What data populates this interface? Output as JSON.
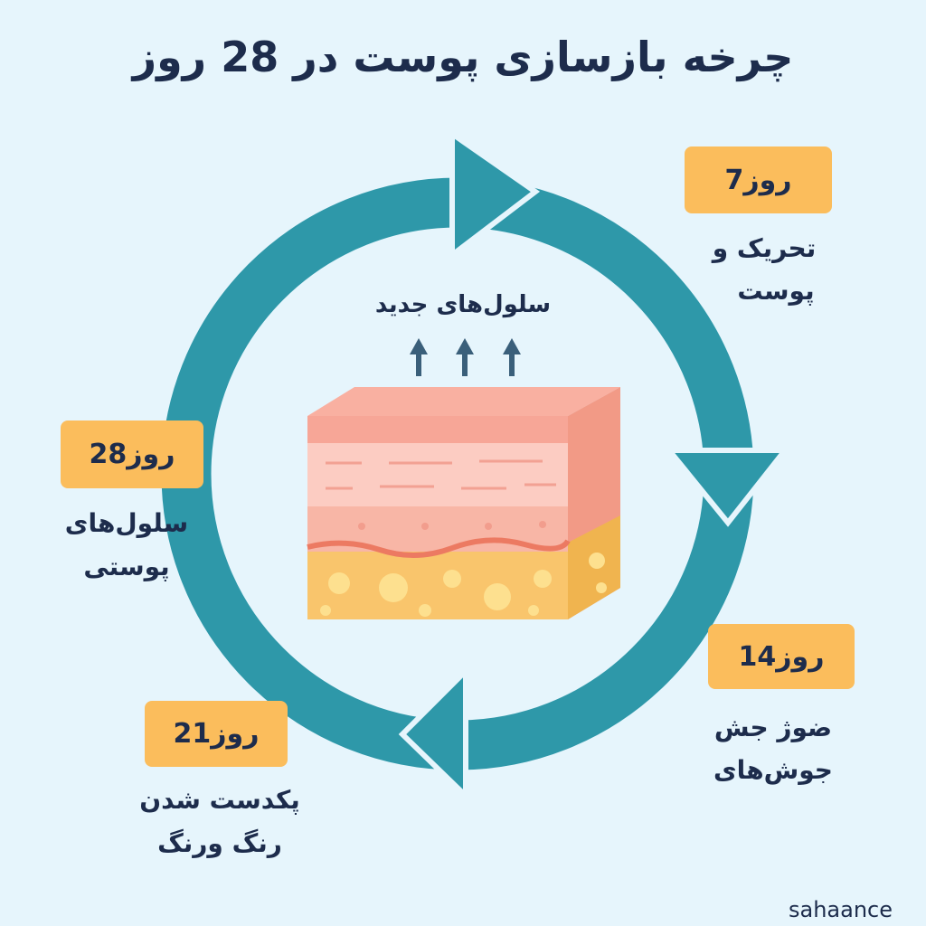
{
  "header": {
    "title": "چرخه بازسازی پوست در 28 روز"
  },
  "center": {
    "label": "سلول‌های جدید"
  },
  "stages": [
    {
      "badge": "روز7",
      "lines": [
        "تحریک و",
        "پوست"
      ]
    },
    {
      "badge": "روز14",
      "lines": [
        "ضوژ جش",
        "جوش‌های"
      ]
    },
    {
      "badge": "روز21",
      "lines": [
        "پکدست شدن",
        "رنگ ورنگ"
      ]
    },
    {
      "badge": "روز28",
      "lines": [
        "سلول‌های",
        "پوستی"
      ]
    }
  ],
  "footer": {
    "watermark": "sahaance"
  }
}
